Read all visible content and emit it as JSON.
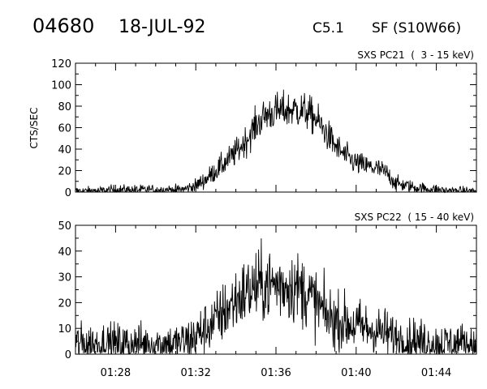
{
  "header": {
    "event_id": "04680",
    "date": "18-JUL-92",
    "flare_class": "C5.1",
    "location": "SF (S10W66)"
  },
  "chart_data": [
    {
      "type": "line",
      "title": "SXS PC21  (  3 - 15 keV)",
      "ylabel": "CTS/SEC",
      "xlabel": "",
      "xlim": [
        "01:26:00",
        "01:46:00"
      ],
      "ylim": [
        0,
        120
      ],
      "yticks": [
        0,
        20,
        40,
        60,
        80,
        100,
        120
      ],
      "xticks": [
        "01:28",
        "01:32",
        "01:36",
        "01:40",
        "01:44"
      ],
      "grid": false,
      "series": [
        {
          "x": [
            "01:26:00",
            "01:27:00",
            "01:28:00",
            "01:29:00",
            "01:30:00",
            "01:31:00",
            "01:31:30",
            "01:32:00",
            "01:32:30",
            "01:33:00",
            "01:33:30",
            "01:34:00",
            "01:34:30",
            "01:35:00",
            "01:35:30",
            "01:36:00",
            "01:36:30",
            "01:37:00",
            "01:37:30",
            "01:38:00",
            "01:38:30",
            "01:39:00",
            "01:39:30",
            "01:40:00",
            "01:40:30",
            "01:41:00",
            "01:41:30",
            "01:42:00",
            "01:43:00",
            "01:44:00",
            "01:45:00",
            "01:46:00"
          ],
          "values": [
            1,
            1,
            2,
            2,
            2,
            2,
            3,
            6,
            12,
            20,
            28,
            37,
            48,
            62,
            72,
            75,
            76,
            77,
            75,
            68,
            55,
            42,
            33,
            27,
            24,
            22,
            18,
            8,
            4,
            2,
            1,
            1
          ]
        }
      ]
    },
    {
      "type": "line",
      "title": "SXS PC22  ( 15 - 40 keV)",
      "ylabel": "",
      "xlabel": "",
      "xlim": [
        "01:26:00",
        "01:46:00"
      ],
      "ylim": [
        0,
        50
      ],
      "yticks": [
        0,
        10,
        20,
        30,
        40,
        50
      ],
      "xticks": [
        "01:28",
        "01:32",
        "01:36",
        "01:40",
        "01:44"
      ],
      "grid": false,
      "series": [
        {
          "x": [
            "01:26:00",
            "01:27:00",
            "01:28:00",
            "01:29:00",
            "01:30:00",
            "01:31:00",
            "01:31:30",
            "01:32:00",
            "01:32:30",
            "01:33:00",
            "01:33:30",
            "01:34:00",
            "01:34:30",
            "01:35:00",
            "01:35:30",
            "01:36:00",
            "01:36:30",
            "01:37:00",
            "01:37:30",
            "01:38:00",
            "01:38:30",
            "01:39:00",
            "01:39:30",
            "01:40:00",
            "01:40:30",
            "01:41:00",
            "01:41:30",
            "01:42:00",
            "01:43:00",
            "01:44:00",
            "01:45:00",
            "01:46:00"
          ],
          "values": [
            4,
            4,
            4,
            4,
            4,
            4,
            5,
            7,
            10,
            13,
            17,
            21,
            24,
            26,
            27,
            27,
            27,
            26,
            24,
            20,
            15,
            13,
            12,
            11,
            10,
            9,
            8,
            6,
            5,
            4,
            4,
            4
          ]
        }
      ]
    }
  ]
}
